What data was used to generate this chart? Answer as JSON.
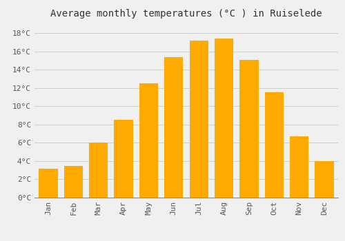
{
  "title": "Average monthly temperatures (°C ) in Ruiselede",
  "months": [
    "Jan",
    "Feb",
    "Mar",
    "Apr",
    "May",
    "Jun",
    "Jul",
    "Aug",
    "Sep",
    "Oct",
    "Nov",
    "Dec"
  ],
  "values": [
    3.2,
    3.5,
    6.0,
    8.5,
    12.5,
    15.4,
    17.2,
    17.4,
    15.1,
    11.5,
    6.7,
    4.0
  ],
  "bar_color": "#FFAA00",
  "background_color": "#F0F0F0",
  "grid_color": "#CCCCCC",
  "ylim": [
    0,
    19
  ],
  "yticks": [
    0,
    2,
    4,
    6,
    8,
    10,
    12,
    14,
    16,
    18
  ],
  "ytick_labels": [
    "0°C",
    "2°C",
    "4°C",
    "6°C",
    "8°C",
    "10°C",
    "12°C",
    "14°C",
    "16°C",
    "18°C"
  ],
  "title_fontsize": 10,
  "tick_fontsize": 8,
  "font_family": "monospace",
  "bar_width": 0.75
}
